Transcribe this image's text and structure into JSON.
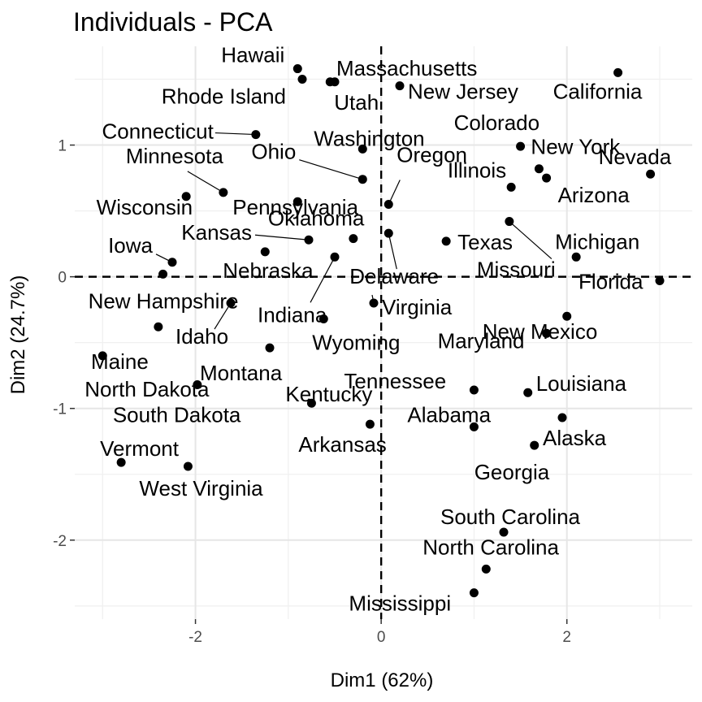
{
  "chart_data": {
    "type": "scatter",
    "title": "Individuals - PCA",
    "xlabel": "Dim1 (62%)",
    "ylabel": "Dim2 (24.7%)",
    "xlim": [
      -3.3,
      3.35
    ],
    "ylim": [
      -2.6,
      1.75
    ],
    "xticks": [
      -2,
      0,
      2
    ],
    "yticks": [
      -2,
      -1,
      0,
      1
    ],
    "x_tick_labels": [
      "-2",
      "0",
      "2"
    ],
    "y_tick_labels": [
      "-2",
      "-1",
      "0",
      "1"
    ],
    "grid": true,
    "reference_lines": {
      "x": 0,
      "y": 0,
      "style": "dashed"
    },
    "points": [
      {
        "label": "Hawaii",
        "x": -0.9,
        "y": 1.58
      },
      {
        "label": "Massachusetts",
        "x": -0.5,
        "y": 1.48
      },
      {
        "label": "Rhode Island",
        "x": -0.85,
        "y": 1.5
      },
      {
        "label": "Utah",
        "x": -0.55,
        "y": 1.48
      },
      {
        "label": "New Jersey",
        "x": 0.2,
        "y": 1.45
      },
      {
        "label": "California",
        "x": 2.55,
        "y": 1.55
      },
      {
        "label": "Connecticut",
        "x": -1.35,
        "y": 1.08
      },
      {
        "label": "Washington",
        "x": -0.2,
        "y": 0.97
      },
      {
        "label": "Ohio",
        "x": -0.2,
        "y": 0.74
      },
      {
        "label": "Colorado",
        "x": 1.5,
        "y": 0.99
      },
      {
        "label": "New York",
        "x": 1.7,
        "y": 0.82
      },
      {
        "label": "Nevada",
        "x": 2.9,
        "y": 0.78
      },
      {
        "label": "Minnesota",
        "x": -1.7,
        "y": 0.64
      },
      {
        "label": "Pennsylvania",
        "x": -0.9,
        "y": 0.57
      },
      {
        "label": "Oregon",
        "x": 0.08,
        "y": 0.55
      },
      {
        "label": "Arizona",
        "x": 1.78,
        "y": 0.75
      },
      {
        "label": "Wisconsin",
        "x": -2.1,
        "y": 0.61
      },
      {
        "label": "Illinois",
        "x": 1.4,
        "y": 0.68
      },
      {
        "label": "Oklahoma",
        "x": -0.3,
        "y": 0.29
      },
      {
        "label": "Kansas",
        "x": -0.78,
        "y": 0.28
      },
      {
        "label": "Texas",
        "x": 0.7,
        "y": 0.27
      },
      {
        "label": "Michigan",
        "x": 2.1,
        "y": 0.15
      },
      {
        "label": "Missouri",
        "x": 1.38,
        "y": 0.42
      },
      {
        "label": "Iowa",
        "x": -2.25,
        "y": 0.11
      },
      {
        "label": "Nebraska",
        "x": -1.25,
        "y": 0.19
      },
      {
        "label": "Delaware",
        "x": 0.08,
        "y": 0.33
      },
      {
        "label": "Florida",
        "x": 3.0,
        "y": -0.03
      },
      {
        "label": "Indiana",
        "x": -0.5,
        "y": 0.15
      },
      {
        "label": "New Hampshire",
        "x": -2.35,
        "y": 0.02
      },
      {
        "label": "Virginia",
        "x": -0.08,
        "y": -0.2
      },
      {
        "label": "New Mexico",
        "x": 2.0,
        "y": -0.3
      },
      {
        "label": "Maine",
        "x": -2.4,
        "y": -0.38
      },
      {
        "label": "Idaho",
        "x": -1.62,
        "y": -0.2
      },
      {
        "label": "Wyoming",
        "x": -0.62,
        "y": -0.32
      },
      {
        "label": "Maryland",
        "x": 1.78,
        "y": -0.43
      },
      {
        "label": "North Dakota",
        "x": -3.0,
        "y": -0.6
      },
      {
        "label": "Montana",
        "x": -1.2,
        "y": -0.54
      },
      {
        "label": "Tennessee",
        "x": 1.0,
        "y": -0.86
      },
      {
        "label": "Louisiana",
        "x": 1.58,
        "y": -0.88
      },
      {
        "label": "South Dakota",
        "x": -1.98,
        "y": -0.82
      },
      {
        "label": "Kentucky",
        "x": -0.75,
        "y": -0.96
      },
      {
        "label": "Alabama",
        "x": 1.0,
        "y": -1.14
      },
      {
        "label": "Alaska",
        "x": 1.95,
        "y": -1.07
      },
      {
        "label": "Arkansas",
        "x": -0.12,
        "y": -1.12
      },
      {
        "label": "Georgia",
        "x": 1.65,
        "y": -1.28
      },
      {
        "label": "Vermont",
        "x": -2.8,
        "y": -1.41
      },
      {
        "label": "West Virginia",
        "x": -2.08,
        "y": -1.44
      },
      {
        "label": "South Carolina",
        "x": 1.32,
        "y": -1.94
      },
      {
        "label": "North Carolina",
        "x": 1.13,
        "y": -2.22
      },
      {
        "label": "Mississippi",
        "x": 1.0,
        "y": -2.4
      }
    ]
  }
}
